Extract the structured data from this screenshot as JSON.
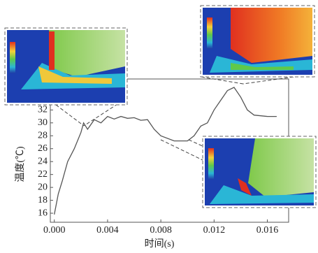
{
  "chart_data": {
    "type": "line",
    "x_label": "时间(s)",
    "y_label": "温度(℃)",
    "x": [
      0,
      0.0003,
      0.0006,
      0.001,
      0.0015,
      0.002,
      0.0022,
      0.0025,
      0.003,
      0.0035,
      0.004,
      0.0045,
      0.005,
      0.0055,
      0.006,
      0.0065,
      0.007,
      0.0075,
      0.008,
      0.009,
      0.01,
      0.0105,
      0.011,
      0.0115,
      0.012,
      0.0125,
      0.013,
      0.0135,
      0.014,
      0.0145,
      0.015,
      0.016,
      0.0167
    ],
    "values": [
      15.8,
      19,
      21,
      24,
      26,
      28.5,
      30,
      29,
      30.5,
      30,
      31,
      30.6,
      31,
      30.7,
      30.8,
      30.4,
      30.5,
      29,
      28,
      27.2,
      27.2,
      28,
      29.5,
      30,
      32,
      33.5,
      35,
      35.5,
      34,
      32,
      31.2,
      31,
      31
    ],
    "color": "#555555",
    "xlim": [
      -0.0003,
      0.0176
    ],
    "ylim": [
      14.6,
      36.8
    ],
    "xticks": [
      {
        "value": 0,
        "label": "0.000"
      },
      {
        "value": 0.004,
        "label": "0.004"
      },
      {
        "value": 0.008,
        "label": "0.008"
      },
      {
        "value": 0.012,
        "label": "0.012"
      },
      {
        "value": 0.016,
        "label": "0.016"
      }
    ],
    "yticks": [
      16,
      18,
      20,
      22,
      24,
      26,
      28,
      30,
      32
    ]
  }
}
